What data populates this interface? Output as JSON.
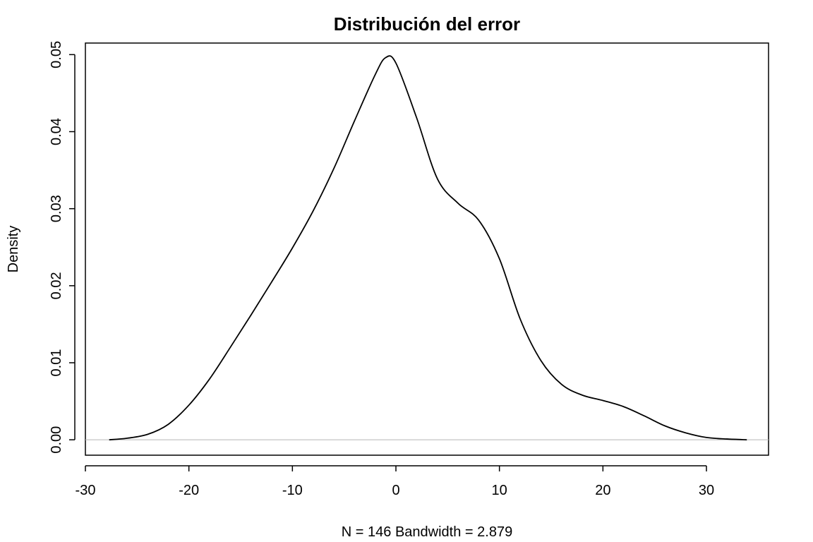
{
  "chart_data": {
    "type": "line",
    "title": "Distribución del error",
    "xlabel": "N = 146   Bandwidth = 2.879",
    "ylabel": "Density",
    "xlim": [
      -30,
      36
    ],
    "ylim": [
      -0.002,
      0.0515
    ],
    "x_ticks": [
      -30,
      -20,
      -10,
      0,
      10,
      20,
      30
    ],
    "y_ticks": [
      0.0,
      0.01,
      0.02,
      0.03,
      0.04,
      0.05
    ],
    "x_tick_labels": [
      "-30",
      "-20",
      "-10",
      "0",
      "10",
      "20",
      "30"
    ],
    "y_tick_labels": [
      "0.00",
      "0.01",
      "0.02",
      "0.03",
      "0.04",
      "0.05"
    ],
    "baseline": 0,
    "grid": false,
    "colors": {
      "line": "#000000",
      "baseline": "#bebebe"
    },
    "series": [
      {
        "x": [
          -27.7,
          -26,
          -24,
          -22,
          -20,
          -18,
          -16,
          -14,
          -12,
          -10,
          -8,
          -6,
          -4,
          -2,
          -1,
          0,
          2,
          4,
          6,
          8,
          10,
          12,
          14,
          16,
          18,
          20,
          22,
          24,
          26,
          28,
          30,
          32,
          33.9
        ],
        "y": [
          0.0,
          0.0002,
          0.0007,
          0.002,
          0.0045,
          0.0079,
          0.012,
          0.0162,
          0.0205,
          0.0249,
          0.0297,
          0.0352,
          0.0414,
          0.0474,
          0.0496,
          0.0489,
          0.0418,
          0.0339,
          0.0307,
          0.0285,
          0.0235,
          0.0157,
          0.0103,
          0.0072,
          0.0058,
          0.0051,
          0.0043,
          0.0031,
          0.0018,
          0.0009,
          0.0003,
          0.0001,
          0.0
        ]
      }
    ]
  }
}
